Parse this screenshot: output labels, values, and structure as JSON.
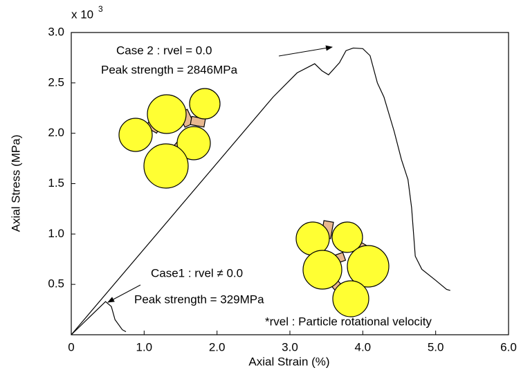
{
  "chart_data": {
    "type": "line",
    "xlabel": "Axial Strain (%)",
    "ylabel": "Axial Stress (MPa)",
    "multiplier": {
      "base": "x 10",
      "exp": "3"
    },
    "xlim": [
      0,
      6
    ],
    "ylim": [
      0,
      3
    ],
    "xticks": [
      0,
      {
        "value": 1,
        "label": "1.0"
      },
      {
        "value": 2,
        "label": "2.0"
      },
      {
        "value": 3,
        "label": "3.0"
      },
      {
        "value": 4,
        "label": "4.0"
      },
      {
        "value": 5,
        "label": "5.0"
      },
      {
        "value": 6,
        "label": "6.0"
      }
    ],
    "yticks": [
      0.5,
      {
        "value": 1,
        "label": "1.0"
      },
      1.5,
      {
        "value": 2,
        "label": "2.0"
      },
      2.5,
      {
        "value": 3,
        "label": "3.0"
      }
    ],
    "series": [
      {
        "color": "#000000",
        "x": [
          0,
          2.77,
          3.1,
          3.34,
          3.44,
          3.53,
          3.68,
          3.77,
          3.87,
          4.0,
          4.1,
          4.2,
          4.29,
          4.43,
          4.53,
          4.62,
          4.67,
          4.72,
          4.81,
          5.0,
          5.15,
          5.2
        ],
        "values": [
          0,
          2.36,
          2.6,
          2.69,
          2.62,
          2.58,
          2.7,
          2.82,
          2.846,
          2.84,
          2.77,
          2.5,
          2.36,
          2.02,
          1.74,
          1.54,
          1.26,
          0.78,
          0.65,
          0.54,
          0.45,
          0.44
        ]
      },
      {
        "color": "#000000",
        "x": [
          0,
          0.47,
          0.55,
          0.6,
          0.7,
          0.75
        ],
        "values": [
          0,
          0.329,
          0.28,
          0.15,
          0.05,
          0.03
        ]
      }
    ],
    "annotations": [
      "Case 2 : rvel = 0.0",
      "Peak strength = 2846MPa",
      "Case1 : rvel ≠ 0.0",
      "Peak strength = 329MPa",
      "*rvel : Particle rotational velocity"
    ]
  }
}
